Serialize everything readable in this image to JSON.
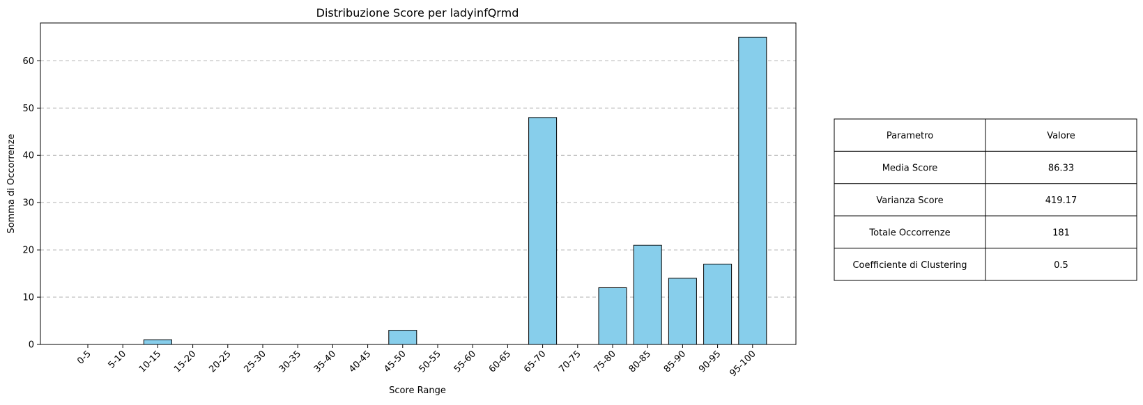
{
  "chart_data": {
    "type": "bar",
    "title": "Distribuzione Score per ladyinfQrmd",
    "xlabel": "Score Range",
    "ylabel": "Somma di Occorrenze",
    "categories": [
      "0-5",
      "5-10",
      "10-15",
      "15-20",
      "20-25",
      "25-30",
      "30-35",
      "35-40",
      "40-45",
      "45-50",
      "50-55",
      "55-60",
      "60-65",
      "65-70",
      "70-75",
      "75-80",
      "80-85",
      "85-90",
      "90-95",
      "95-100"
    ],
    "values": [
      0,
      0,
      1,
      0,
      0,
      0,
      0,
      0,
      0,
      3,
      0,
      0,
      0,
      48,
      0,
      12,
      21,
      14,
      17,
      65
    ],
    "ylim": [
      0,
      68
    ],
    "yticks": [
      0,
      10,
      20,
      30,
      40,
      50,
      60
    ],
    "grid": "y-dashed",
    "bar_color": "#87ceeb",
    "bar_edge_color": "#000000"
  },
  "stats_table": {
    "headers": [
      "Parametro",
      "Valore"
    ],
    "rows": [
      [
        "Media Score",
        "86.33"
      ],
      [
        "Varianza Score",
        "419.17"
      ],
      [
        "Totale Occorrenze",
        "181"
      ],
      [
        "Coefficiente di Clustering",
        "0.5"
      ]
    ]
  }
}
